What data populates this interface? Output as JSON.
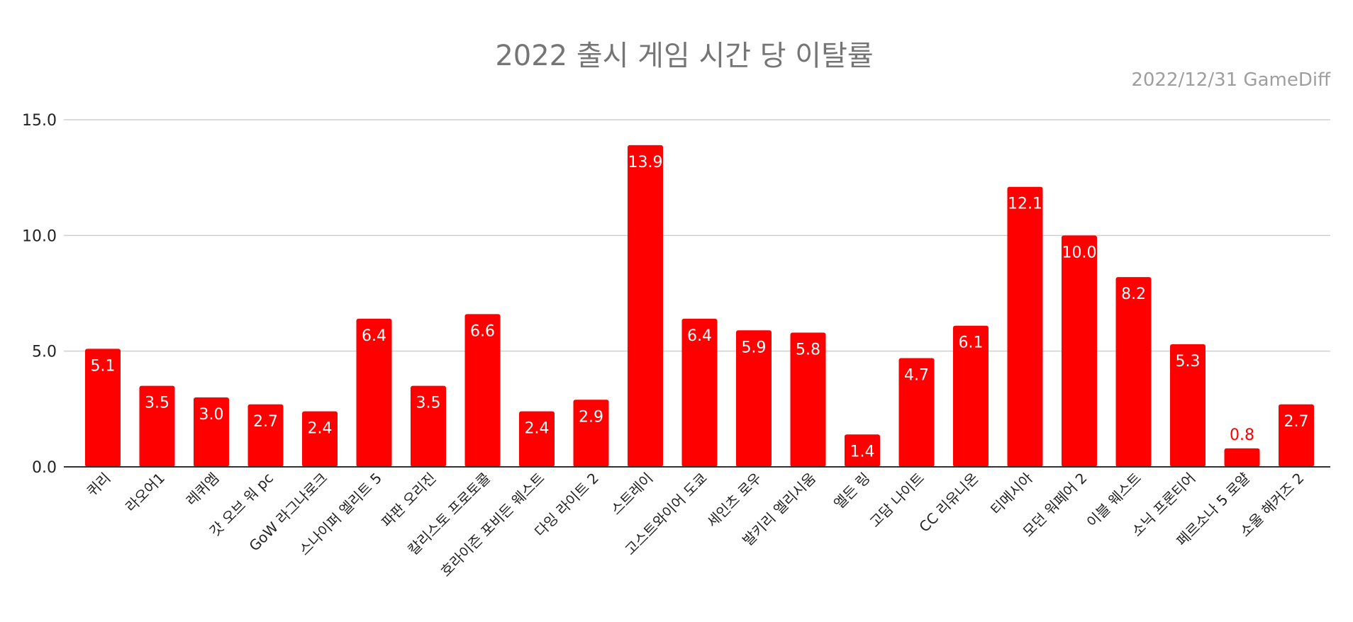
{
  "chart_data": {
    "type": "bar",
    "title": "2022 출시 게임 시간 당 이탈률",
    "subtitle": "2022/12/31  GameDiff",
    "xlabel": "",
    "ylabel": "",
    "ylim": [
      0,
      15
    ],
    "yticks": [
      "0.0",
      "5.0",
      "10.0",
      "15.0"
    ],
    "grid": true,
    "legend": "none",
    "bar_color": "#ff0000",
    "label_color_inside": "#ffffff",
    "label_color_outside": "#ff0000",
    "categories": [
      "퀴리",
      "라오어1",
      "레퀴엠",
      "갓 오브 워 pc",
      "GoW 라그나로크",
      "스나이퍼 엘리트 5",
      "파판 오리진",
      "칼리스토 프로토콜",
      "호라이즌 포비든 웨스트",
      "다잉 라이트 2",
      "스트레이",
      "고스트와이어 도쿄",
      "세인츠 로우",
      "발키리 엘리시움",
      "엘든 링",
      "고담 나이트",
      "CC 리유니온",
      "티메시아",
      "모던 워페어 2",
      "이블 웨스트",
      "소닉 프론티어",
      "페르소나 5 로얄",
      "소울 해커즈 2"
    ],
    "values": [
      5.1,
      3.5,
      3.0,
      2.7,
      2.4,
      6.4,
      3.5,
      6.6,
      2.4,
      2.9,
      13.9,
      6.4,
      5.9,
      5.8,
      1.4,
      4.7,
      6.1,
      12.1,
      10.0,
      8.2,
      5.3,
      0.8,
      2.7
    ],
    "data_labels": [
      "5.1",
      "3.5",
      "3.0",
      "2.7",
      "2.4",
      "6.4",
      "3.5",
      "6.6",
      "2.4",
      "2.9",
      "13.9",
      "6.4",
      "5.9",
      "5.8",
      "1.4",
      "4.7",
      "6.1",
      "12.1",
      "10.0",
      "8.2",
      "5.3",
      "0.8",
      "2.7"
    ]
  }
}
